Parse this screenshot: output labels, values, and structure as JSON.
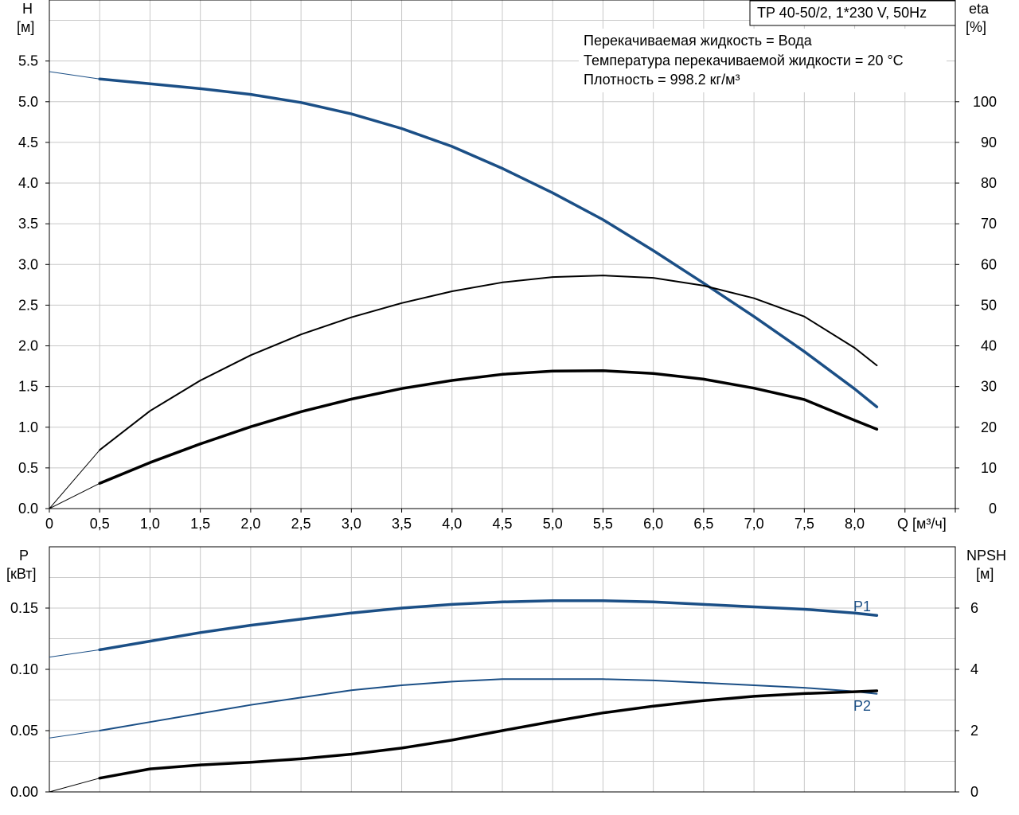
{
  "chart_data": [
    {
      "type": "line",
      "header": "TP 40-50/2, 1*230 V, 50Hz",
      "info": [
        "Перекачиваемая жидкость = Вода",
        "Температура перекачиваемой жидкости = 20 °C",
        "Плотность = 998.2 кг/м³"
      ],
      "y_left": {
        "title": "H",
        "unit": "[м]",
        "lim": [
          0,
          6.25
        ],
        "ticks": [
          "0.0",
          "0.5",
          "1.0",
          "1.5",
          "2.0",
          "2.5",
          "3.0",
          "3.5",
          "4.0",
          "4.5",
          "5.0",
          "5.5"
        ]
      },
      "y_right": {
        "title": "eta",
        "unit": "[%]",
        "lim": [
          0,
          125
        ],
        "ticks": [
          "0",
          "10",
          "20",
          "30",
          "40",
          "50",
          "60",
          "70",
          "80",
          "90",
          "100"
        ]
      },
      "x": {
        "unit_label": "Q [м³/ч]",
        "lim": [
          0,
          9.0
        ],
        "ticks": [
          "0",
          "0,5",
          "1,0",
          "1,5",
          "2,0",
          "2,5",
          "3,0",
          "3,5",
          "4,0",
          "4,5",
          "5,0",
          "5,5",
          "6,0",
          "6,5",
          "7,0",
          "7,5",
          "8,0"
        ]
      },
      "series": [
        {
          "axis": "left",
          "color": "#1b4f86",
          "points": [
            [
              0,
              5.37
            ],
            [
              0.5,
              5.28
            ],
            [
              1.0,
              5.22
            ],
            [
              1.5,
              5.16
            ],
            [
              2.0,
              5.09
            ],
            [
              2.5,
              4.99
            ],
            [
              3.0,
              4.85
            ],
            [
              3.5,
              4.67
            ],
            [
              4.0,
              4.45
            ],
            [
              4.5,
              4.18
            ],
            [
              5.0,
              3.88
            ],
            [
              5.5,
              3.55
            ],
            [
              6.0,
              3.17
            ],
            [
              6.5,
              2.77
            ],
            [
              7.0,
              2.36
            ],
            [
              7.5,
              1.93
            ],
            [
              8.0,
              1.47
            ],
            [
              8.22,
              1.25
            ]
          ]
        },
        {
          "axis": "right",
          "points": [
            [
              0,
              0
            ],
            [
              0.5,
              14.4
            ],
            [
              1.0,
              24.0
            ],
            [
              1.5,
              31.5
            ],
            [
              2.0,
              37.7
            ],
            [
              2.5,
              42.8
            ],
            [
              3.0,
              47.0
            ],
            [
              3.5,
              50.5
            ],
            [
              4.0,
              53.4
            ],
            [
              4.5,
              55.6
            ],
            [
              5.0,
              56.9
            ],
            [
              5.5,
              57.3
            ],
            [
              6.0,
              56.7
            ],
            [
              6.5,
              54.8
            ],
            [
              7.0,
              51.7
            ],
            [
              7.5,
              47.2
            ],
            [
              8.0,
              39.5
            ],
            [
              8.22,
              35.2
            ]
          ]
        },
        {
          "axis": "right",
          "points": [
            [
              0,
              0
            ],
            [
              0.5,
              6.2
            ],
            [
              1.0,
              11.3
            ],
            [
              1.5,
              15.9
            ],
            [
              2.0,
              20.1
            ],
            [
              2.5,
              23.8
            ],
            [
              3.0,
              26.9
            ],
            [
              3.5,
              29.5
            ],
            [
              4.0,
              31.5
            ],
            [
              4.5,
              33.0
            ],
            [
              5.0,
              33.8
            ],
            [
              5.5,
              33.9
            ],
            [
              6.0,
              33.2
            ],
            [
              6.5,
              31.8
            ],
            [
              7.0,
              29.6
            ],
            [
              7.5,
              26.8
            ],
            [
              8.0,
              21.7
            ],
            [
              8.22,
              19.5
            ]
          ]
        }
      ]
    },
    {
      "type": "line",
      "y_left": {
        "title": "P",
        "unit": "[кВт]",
        "lim": [
          0,
          0.2
        ],
        "ticks": [
          "0.00",
          "0.05",
          "0.10",
          "0.15"
        ]
      },
      "y_right": {
        "title": "NPSH",
        "unit": "[м]",
        "lim": [
          0,
          8.0
        ],
        "ticks": [
          "0",
          "2",
          "4",
          "6"
        ]
      },
      "x": {
        "lim": [
          0,
          9.0
        ]
      },
      "series": [
        {
          "name": "P1",
          "axis": "left",
          "color": "#1b4f86",
          "points": [
            [
              0,
              0.11
            ],
            [
              0.5,
              0.116
            ],
            [
              1.0,
              0.123
            ],
            [
              1.5,
              0.13
            ],
            [
              2.0,
              0.136
            ],
            [
              2.5,
              0.141
            ],
            [
              3.0,
              0.146
            ],
            [
              3.5,
              0.15
            ],
            [
              4.0,
              0.153
            ],
            [
              4.5,
              0.155
            ],
            [
              5.0,
              0.156
            ],
            [
              5.5,
              0.156
            ],
            [
              6.0,
              0.155
            ],
            [
              6.5,
              0.153
            ],
            [
              7.0,
              0.151
            ],
            [
              7.5,
              0.149
            ],
            [
              8.0,
              0.146
            ],
            [
              8.22,
              0.144
            ]
          ]
        },
        {
          "name": "P2",
          "axis": "left",
          "color": "#1b4f86",
          "points": [
            [
              0,
              0.044
            ],
            [
              0.5,
              0.05
            ],
            [
              1.0,
              0.057
            ],
            [
              1.5,
              0.064
            ],
            [
              2.0,
              0.071
            ],
            [
              2.5,
              0.077
            ],
            [
              3.0,
              0.083
            ],
            [
              3.5,
              0.087
            ],
            [
              4.0,
              0.09
            ],
            [
              4.5,
              0.092
            ],
            [
              5.0,
              0.092
            ],
            [
              5.5,
              0.092
            ],
            [
              6.0,
              0.091
            ],
            [
              6.5,
              0.089
            ],
            [
              7.0,
              0.087
            ],
            [
              7.5,
              0.085
            ],
            [
              8.0,
              0.082
            ],
            [
              8.22,
              0.08
            ]
          ]
        },
        {
          "axis": "right",
          "color": "#000000",
          "points": [
            [
              0,
              0
            ],
            [
              0.5,
              0.45
            ],
            [
              1.0,
              0.75
            ],
            [
              1.5,
              0.88
            ],
            [
              2.0,
              0.97
            ],
            [
              2.5,
              1.08
            ],
            [
              3.0,
              1.23
            ],
            [
              3.5,
              1.43
            ],
            [
              4.0,
              1.69
            ],
            [
              4.5,
              2.0
            ],
            [
              5.0,
              2.3
            ],
            [
              5.5,
              2.58
            ],
            [
              6.0,
              2.8
            ],
            [
              6.5,
              2.98
            ],
            [
              7.0,
              3.12
            ],
            [
              7.5,
              3.21
            ],
            [
              8.0,
              3.27
            ],
            [
              8.22,
              3.3
            ]
          ]
        }
      ]
    }
  ]
}
